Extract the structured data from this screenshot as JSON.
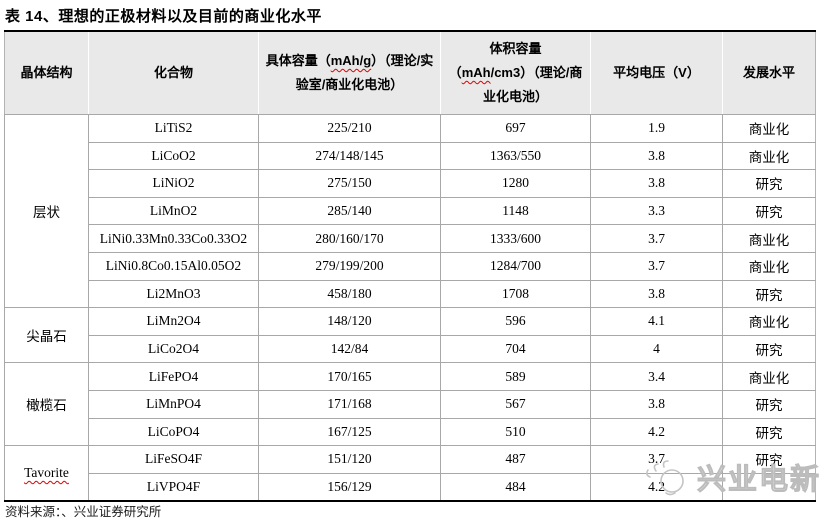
{
  "title": "表 14、理想的正极材料以及目前的商业化水平",
  "source_note": "资料来源：、兴业证券研究所",
  "watermark": {
    "text": "兴业电新",
    "icon": "sun-sketch-icon"
  },
  "colors": {
    "header_bg": "#e9e9e9",
    "grid_line": "#a8a8a8",
    "outer_border": "#000000",
    "squiggle": "#e00000",
    "watermark_gray": "#bcbcbc"
  },
  "table": {
    "columns": [
      {
        "label": "晶体结构"
      },
      {
        "label": "化合物"
      },
      {
        "pre": "具体容量（",
        "squiggle": "mAh/g",
        "post": "）（理论/实验室/商业化电池）"
      },
      {
        "line1": "体积容量",
        "pre": "（",
        "squiggle": "mAh",
        "post": "/cm3）（理论/商业化电池）"
      },
      {
        "label": "平均电压（V）"
      },
      {
        "label": "发展水平"
      }
    ],
    "groups": [
      {
        "structure": "层状",
        "squiggle": false,
        "rows": [
          {
            "compound": "LiTiS2",
            "specific_capacity": "225/210",
            "volumetric_capacity": "697",
            "avg_voltage": "1.9",
            "status": "商业化"
          },
          {
            "compound": "LiCoO2",
            "specific_capacity": "274/148/145",
            "volumetric_capacity": "1363/550",
            "avg_voltage": "3.8",
            "status": "商业化"
          },
          {
            "compound": "LiNiO2",
            "specific_capacity": "275/150",
            "volumetric_capacity": "1280",
            "avg_voltage": "3.8",
            "status": "研究"
          },
          {
            "compound": "LiMnO2",
            "specific_capacity": "285/140",
            "volumetric_capacity": "1148",
            "avg_voltage": "3.3",
            "status": "研究"
          },
          {
            "compound": "LiNi0.33Mn0.33Co0.33O2",
            "specific_capacity": "280/160/170",
            "volumetric_capacity": "1333/600",
            "avg_voltage": "3.7",
            "status": "商业化"
          },
          {
            "compound": "LiNi0.8Co0.15Al0.05O2",
            "specific_capacity": "279/199/200",
            "volumetric_capacity": "1284/700",
            "avg_voltage": "3.7",
            "status": "商业化"
          },
          {
            "compound": "Li2MnO3",
            "specific_capacity": "458/180",
            "volumetric_capacity": "1708",
            "avg_voltage": "3.8",
            "status": "研究"
          }
        ]
      },
      {
        "structure": "尖晶石",
        "squiggle": false,
        "rows": [
          {
            "compound": "LiMn2O4",
            "specific_capacity": "148/120",
            "volumetric_capacity": "596",
            "avg_voltage": "4.1",
            "status": "商业化"
          },
          {
            "compound": "LiCo2O4",
            "specific_capacity": "142/84",
            "volumetric_capacity": "704",
            "avg_voltage": "4",
            "status": "研究"
          }
        ]
      },
      {
        "structure": "橄榄石",
        "squiggle": false,
        "rows": [
          {
            "compound": "LiFePO4",
            "specific_capacity": "170/165",
            "volumetric_capacity": "589",
            "avg_voltage": "3.4",
            "status": "商业化"
          },
          {
            "compound": "LiMnPO4",
            "specific_capacity": "171/168",
            "volumetric_capacity": "567",
            "avg_voltage": "3.8",
            "status": "研究"
          },
          {
            "compound": "LiCoPO4",
            "specific_capacity": "167/125",
            "volumetric_capacity": "510",
            "avg_voltage": "4.2",
            "status": "研究"
          }
        ]
      },
      {
        "structure": "Tavorite",
        "squiggle": true,
        "rows": [
          {
            "compound": "LiFeSO4F",
            "specific_capacity": "151/120",
            "volumetric_capacity": "487",
            "avg_voltage": "3.7",
            "status": "研究"
          },
          {
            "compound": "LiVPO4F",
            "specific_capacity": "156/129",
            "volumetric_capacity": "484",
            "avg_voltage": "4.2",
            "status": ""
          }
        ]
      }
    ]
  }
}
